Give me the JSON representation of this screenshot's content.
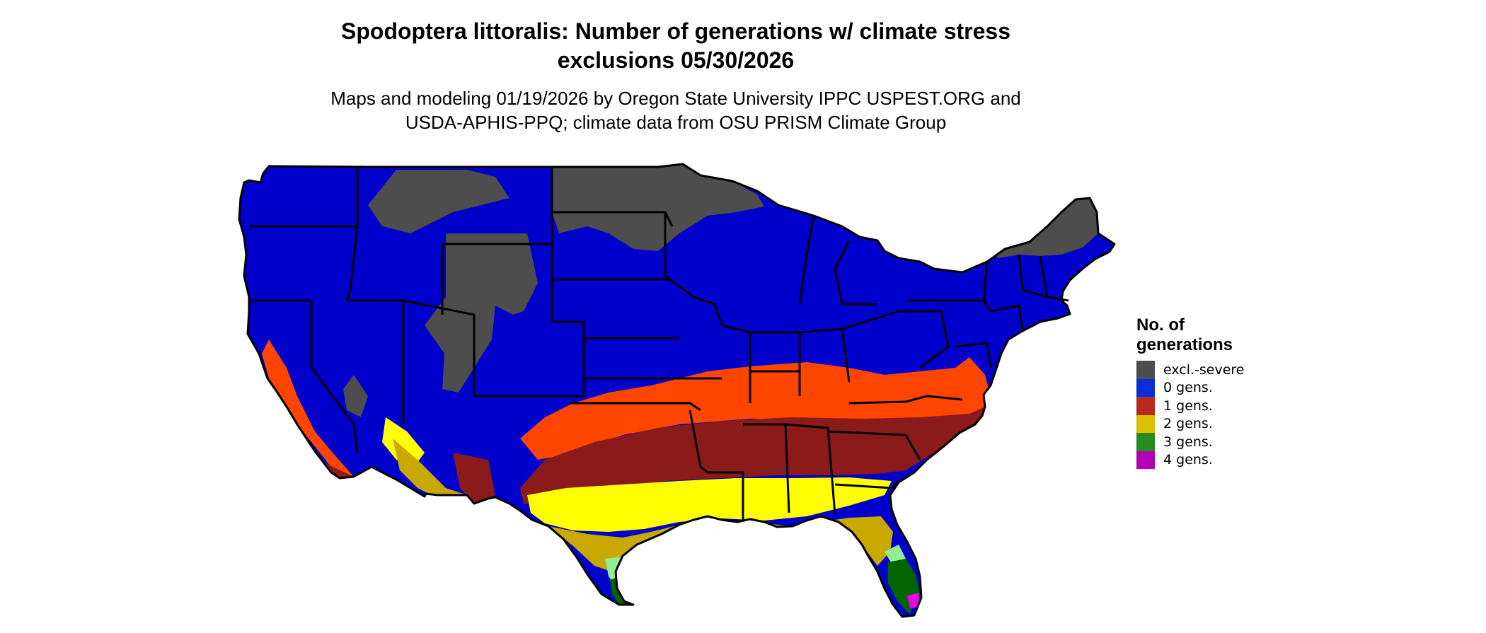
{
  "header": {
    "title_line1": "Spodoptera littoralis: Number of generations w/ climate stress",
    "title_line2": "exclusions 05/30/2026",
    "subtitle_line1": "Maps and modeling 01/19/2026 by Oregon State University IPPC USPEST.ORG and",
    "subtitle_line2": "USDA-APHIS-PPQ; climate data from OSU PRISM Climate Group"
  },
  "legend": {
    "title_line1": "No. of",
    "title_line2": "generations",
    "items": [
      {
        "label": "excl.-severe",
        "color": "#4d4d4d"
      },
      {
        "label": "0 gens.",
        "color": "#0a2ed6"
      },
      {
        "label": "1 gens.",
        "color": "#b8281c"
      },
      {
        "label": "2 gens.",
        "color": "#d9c000"
      },
      {
        "label": "3 gens.",
        "color": "#2a8a22"
      },
      {
        "label": "4 gens.",
        "color": "#b400b4"
      }
    ]
  },
  "map_colors": {
    "excluded": "#4d4d4d",
    "zero": "#0000cc",
    "one_light": "#ff4500",
    "one_dark": "#8b1a1a",
    "two_bright": "#ffff00",
    "two_dark": "#c9a800",
    "three_light": "#90ee90",
    "three_dark": "#006400",
    "four": "#ee00ee",
    "borders": "#000000"
  }
}
